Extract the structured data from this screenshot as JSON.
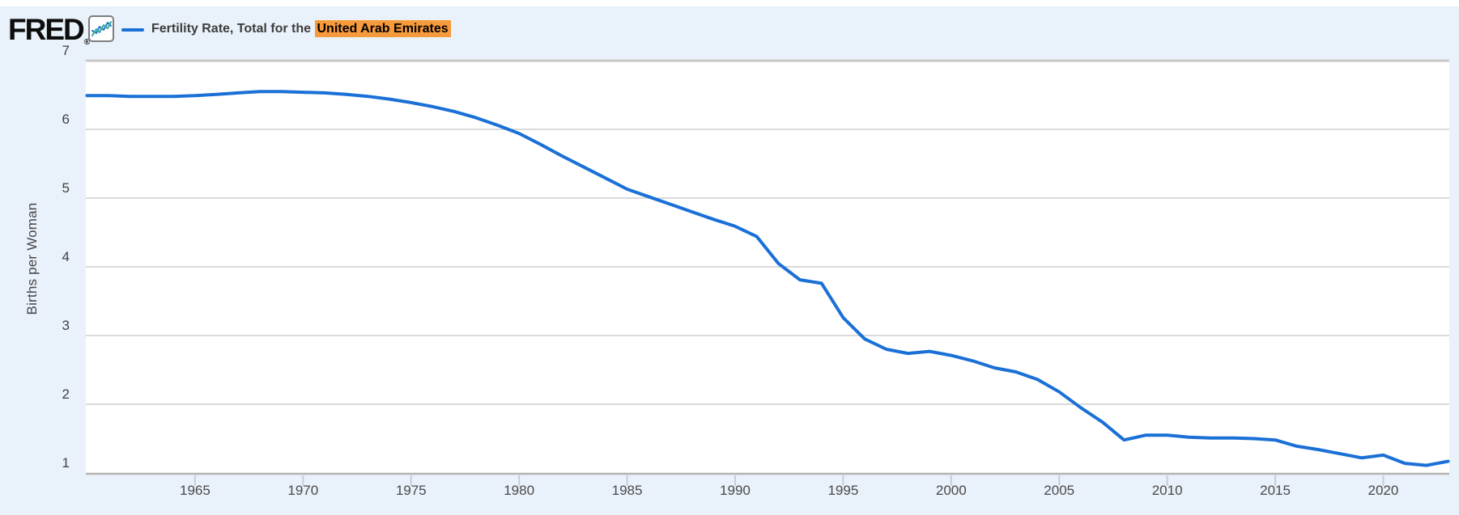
{
  "header": {
    "logo_text": "FRED",
    "registered_mark": "®",
    "series_prefix": "Fertility Rate, Total for the ",
    "series_region": "United Arab Emirates"
  },
  "colors": {
    "line": "#1a70d6",
    "region_highlight": "#f79a3b",
    "page_background": "#e9f1fa",
    "plot_background": "#ffffff",
    "gridline": "#cdcdcd",
    "top_gridline": "#c7c7c7",
    "axis_line": "#b3b3b3",
    "tick_mark": "#c3cfdb",
    "icon_zigzag_blue": "#2b6fd3",
    "icon_zigzag_teal": "#2fae9b"
  },
  "chart_data": {
    "type": "line",
    "title": "Fertility Rate, Total for the United Arab Emirates",
    "ylabel": "Births per Woman",
    "xlabel": "",
    "legend_position": "top-left",
    "grid": "horizontal",
    "xlim": [
      1960,
      2023
    ],
    "ylim": [
      1,
      7
    ],
    "x_ticks": [
      1965,
      1970,
      1975,
      1980,
      1985,
      1990,
      1995,
      2000,
      2005,
      2010,
      2015,
      2020
    ],
    "y_ticks": [
      1,
      2,
      3,
      4,
      5,
      6,
      7
    ],
    "x": [
      1960,
      1961,
      1962,
      1963,
      1964,
      1965,
      1966,
      1967,
      1968,
      1969,
      1970,
      1971,
      1972,
      1973,
      1974,
      1975,
      1976,
      1977,
      1978,
      1979,
      1980,
      1981,
      1982,
      1983,
      1984,
      1985,
      1986,
      1987,
      1988,
      1989,
      1990,
      1991,
      1992,
      1993,
      1994,
      1995,
      1996,
      1997,
      1998,
      1999,
      2000,
      2001,
      2002,
      2003,
      2004,
      2005,
      2006,
      2007,
      2008,
      2009,
      2010,
      2011,
      2012,
      2013,
      2014,
      2015,
      2016,
      2017,
      2018,
      2019,
      2020,
      2021,
      2022,
      2023
    ],
    "values": [
      6.49,
      6.49,
      6.48,
      6.48,
      6.48,
      6.49,
      6.51,
      6.53,
      6.55,
      6.55,
      6.54,
      6.53,
      6.51,
      6.48,
      6.44,
      6.39,
      6.33,
      6.26,
      6.17,
      6.06,
      5.94,
      5.78,
      5.61,
      5.45,
      5.29,
      5.13,
      5.02,
      4.91,
      4.8,
      4.69,
      4.59,
      4.44,
      4.05,
      3.81,
      3.76,
      3.26,
      2.95,
      2.8,
      2.74,
      2.77,
      2.71,
      2.63,
      2.53,
      2.47,
      2.36,
      2.18,
      1.95,
      1.74,
      1.48,
      1.55,
      1.55,
      1.52,
      1.51,
      1.51,
      1.5,
      1.48,
      1.39,
      1.34,
      1.28,
      1.22,
      1.26,
      1.14,
      1.11,
      1.17
    ]
  }
}
